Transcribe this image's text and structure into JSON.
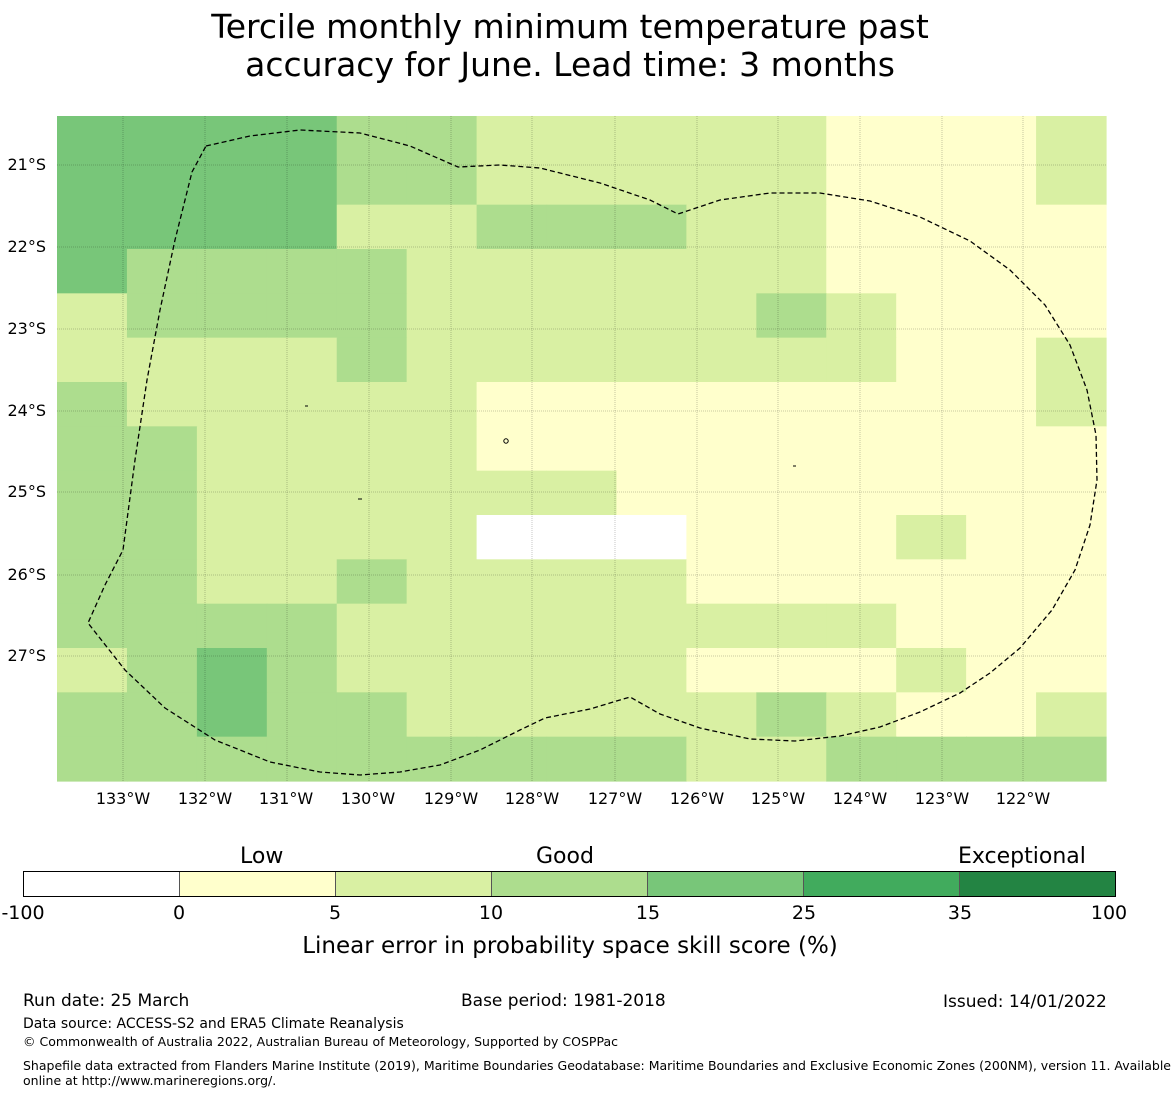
{
  "title": {
    "line1": "Tercile monthly minimum temperature past",
    "line2": "accuracy for June. Lead time: 3 months"
  },
  "map": {
    "lat_labels": [
      "21°S",
      "22°S",
      "23°S",
      "24°S",
      "25°S",
      "26°S",
      "27°S"
    ],
    "lon_labels": [
      "133°W",
      "132°W",
      "131°W",
      "130°W",
      "129°W",
      "128°W",
      "127°W",
      "126°W",
      "125°W",
      "124°W",
      "123°W",
      "122°W"
    ],
    "grid": {
      "cols": 15,
      "rows": 15,
      "cells": [
        "444433222221112",
        "444433222221112",
        "444422333221111",
        "433332222221111",
        "233332222232111",
        "222232222222112",
        "322222111111112",
        "332222111111111",
        "332222221111111",
        "332222000111211",
        "332232222111111",
        "333322222222111",
        "234322222111211",
        "334332222232112",
        "333333333223333"
      ]
    },
    "boundary_style": "dashed black outline (EEZ)"
  },
  "colorbar": {
    "headings": {
      "low": "Low",
      "good": "Good",
      "exceptional": "Exceptional"
    },
    "ticks": [
      "-100",
      "0",
      "5",
      "10",
      "15",
      "25",
      "35",
      "100"
    ],
    "colors": [
      "#ffffff",
      "#ffffcc",
      "#d9f0a3",
      "#addd8e",
      "#78c679",
      "#41ab5d",
      "#238443"
    ],
    "label": "Linear error in probability space skill score (%)"
  },
  "footer": {
    "run_date": "Run date: 25 March",
    "base_period": "Base period: 1981-2018",
    "issued": "Issued: 14/01/2022",
    "data_source": "Data source: ACCESS-S2 and ERA5 Climate Reanalysis",
    "copyright": "© Commonwealth of Australia 2022, Australian Bureau of Meteorology, Supported by COSPPac",
    "shapefile_line1": "Shapefile data extracted from Flanders Marine Institute (2019), Maritime Boundaries Geodatabase: Maritime Boundaries and Exclusive Economic Zones (200NM), version 11. Available",
    "shapefile_line2": "online at http://www.marineregions.org/."
  }
}
